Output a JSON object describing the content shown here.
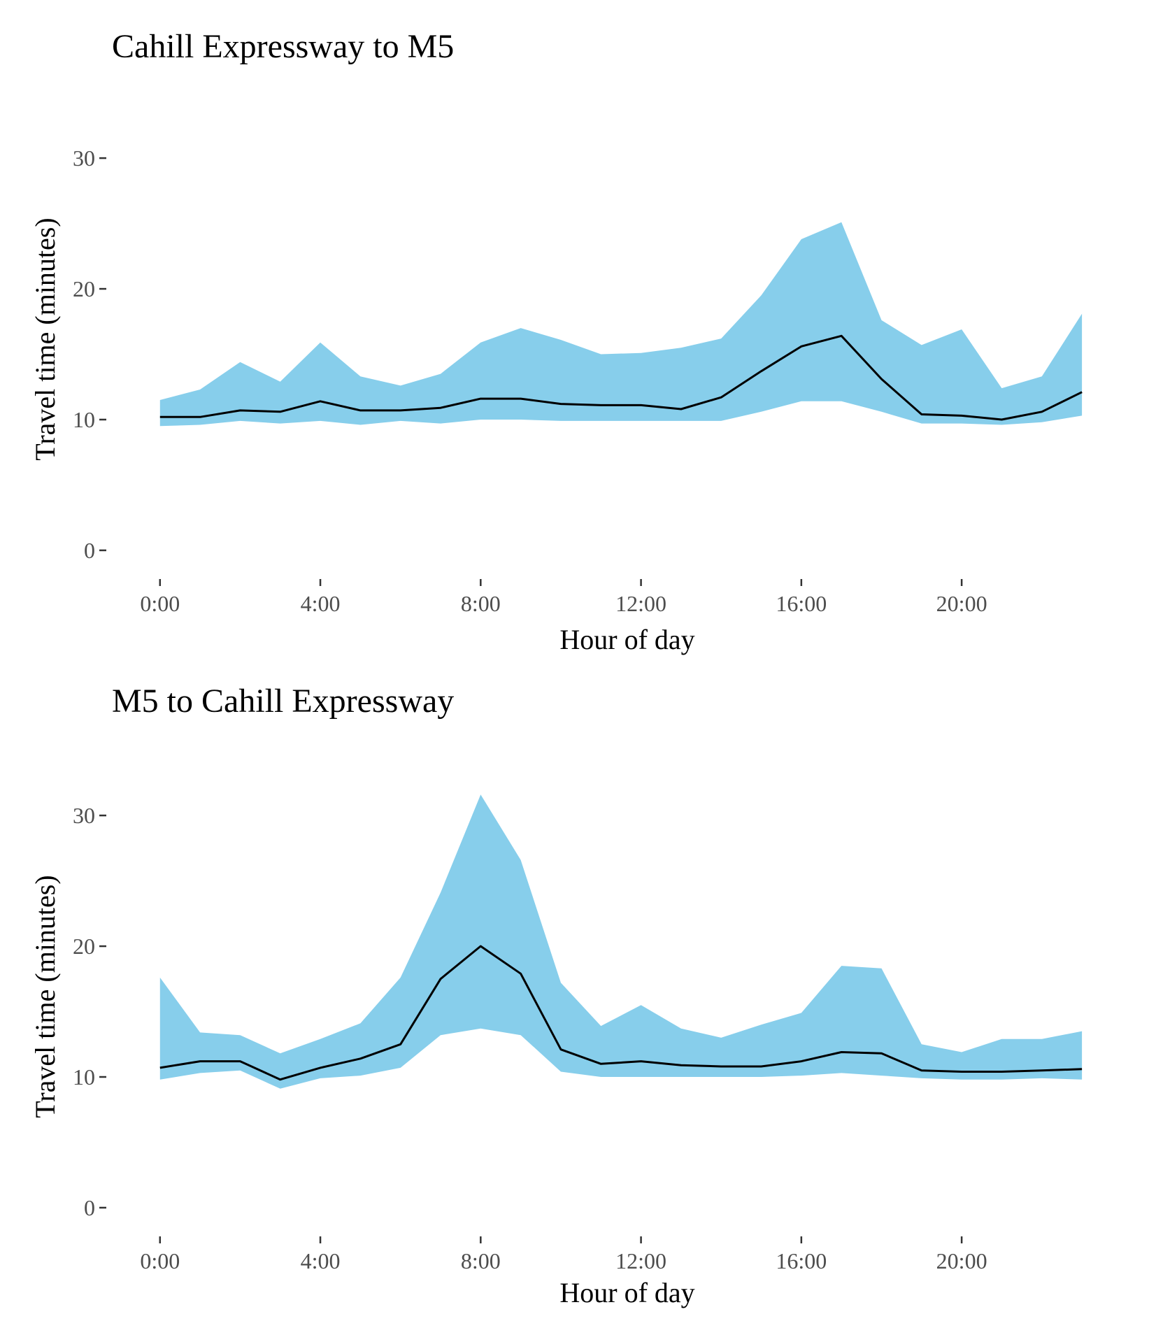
{
  "colors": {
    "band": "#87CEEB",
    "line": "#000000",
    "tick_text": "#4d4d4d"
  },
  "chart_data": [
    {
      "type": "area",
      "title": "Cahill Expressway to M5",
      "xlabel": "Hour of day",
      "ylabel": "Travel time (minutes)",
      "xlim": [
        -1.2,
        23.4
      ],
      "ylim": [
        -1.5,
        33
      ],
      "x_ticks": [
        0,
        4,
        8,
        12,
        16,
        20
      ],
      "x_tick_labels": [
        "0:00",
        "4:00",
        "8:00",
        "12:00",
        "16:00",
        "20:00"
      ],
      "y_ticks": [
        0,
        10,
        20,
        30
      ],
      "y_tick_labels": [
        "0",
        "10",
        "20",
        "30"
      ],
      "grid": false,
      "legend": "none",
      "x": [
        0,
        1,
        2,
        3,
        4,
        5,
        6,
        7,
        8,
        9,
        10,
        11,
        12,
        13,
        14,
        15,
        16,
        17,
        18,
        19,
        20,
        21,
        22,
        23
      ],
      "series": [
        {
          "role": "band_lower",
          "values": [
            9.5,
            9.6,
            9.9,
            9.7,
            9.9,
            9.6,
            9.9,
            9.7,
            10.0,
            10.0,
            9.9,
            9.9,
            9.9,
            9.9,
            9.9,
            10.6,
            11.4,
            11.4,
            10.6,
            9.7,
            9.7,
            9.6,
            9.8,
            10.3
          ]
        },
        {
          "role": "band_upper",
          "values": [
            11.5,
            12.3,
            14.4,
            12.9,
            15.9,
            13.3,
            12.6,
            13.5,
            15.9,
            17.0,
            16.1,
            15.0,
            15.1,
            15.5,
            16.2,
            19.5,
            23.8,
            25.1,
            17.6,
            15.7,
            16.9,
            12.4,
            13.3,
            18.1
          ]
        },
        {
          "role": "median",
          "values": [
            10.2,
            10.2,
            10.7,
            10.6,
            11.4,
            10.7,
            10.7,
            10.9,
            11.6,
            11.6,
            11.2,
            11.1,
            11.1,
            10.8,
            11.7,
            13.7,
            15.6,
            16.4,
            13.1,
            10.4,
            10.3,
            10.0,
            10.6,
            12.1
          ]
        }
      ]
    },
    {
      "type": "area",
      "title": "M5 to Cahill Expressway",
      "xlabel": "Hour of day",
      "ylabel": "Travel time (minutes)",
      "xlim": [
        -1.2,
        23.4
      ],
      "ylim": [
        -1.5,
        33
      ],
      "x_ticks": [
        0,
        4,
        8,
        12,
        16,
        20
      ],
      "x_tick_labels": [
        "0:00",
        "4:00",
        "8:00",
        "12:00",
        "16:00",
        "20:00"
      ],
      "y_ticks": [
        0,
        10,
        20,
        30
      ],
      "y_tick_labels": [
        "0",
        "10",
        "20",
        "30"
      ],
      "grid": false,
      "legend": "none",
      "x": [
        0,
        1,
        2,
        3,
        4,
        5,
        6,
        7,
        8,
        9,
        10,
        11,
        12,
        13,
        14,
        15,
        16,
        17,
        18,
        19,
        20,
        21,
        22,
        23
      ],
      "series": [
        {
          "role": "band_lower",
          "values": [
            9.8,
            10.3,
            10.5,
            9.1,
            9.9,
            10.1,
            10.7,
            13.2,
            13.7,
            13.2,
            10.4,
            10.0,
            10.0,
            10.0,
            10.0,
            10.0,
            10.1,
            10.3,
            10.1,
            9.9,
            9.8,
            9.8,
            9.9,
            9.8
          ]
        },
        {
          "role": "band_upper",
          "values": [
            17.6,
            13.4,
            13.2,
            11.8,
            12.9,
            14.1,
            17.6,
            24.1,
            31.6,
            26.6,
            17.2,
            13.9,
            15.5,
            13.7,
            13.0,
            14.0,
            14.9,
            18.5,
            18.3,
            12.5,
            11.9,
            12.9,
            12.9,
            13.5
          ]
        },
        {
          "role": "median",
          "values": [
            10.7,
            11.2,
            11.2,
            9.8,
            10.7,
            11.4,
            12.5,
            17.5,
            20.0,
            17.9,
            12.1,
            11.0,
            11.2,
            10.9,
            10.8,
            10.8,
            11.2,
            11.9,
            11.8,
            10.5,
            10.4,
            10.4,
            10.5,
            10.6
          ]
        }
      ]
    }
  ]
}
